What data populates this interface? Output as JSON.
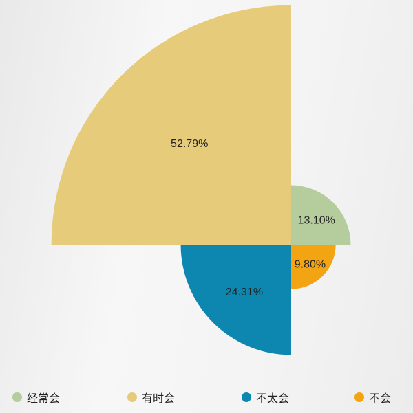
{
  "chart_data": {
    "type": "rose",
    "title": "",
    "series": [
      {
        "name": "经常会",
        "value": 13.1,
        "label": "13.10%",
        "color": "#b5cc9c"
      },
      {
        "name": "不会",
        "value": 9.8,
        "label": "9.80%",
        "color": "#f2a413"
      },
      {
        "name": "不太会",
        "value": 24.31,
        "label": "24.31%",
        "color": "#0e87b0"
      },
      {
        "name": "有时会",
        "value": 52.79,
        "label": "52.79%",
        "color": "#e6cb7a"
      }
    ],
    "legend": {
      "placement": "bottom",
      "items": [
        {
          "name": "经常会",
          "color": "#b5cc9c"
        },
        {
          "name": "有时会",
          "color": "#e6cb7a"
        },
        {
          "name": "不太会",
          "color": "#0e87b0"
        },
        {
          "name": "不会",
          "color": "#f2a413"
        }
      ]
    }
  }
}
